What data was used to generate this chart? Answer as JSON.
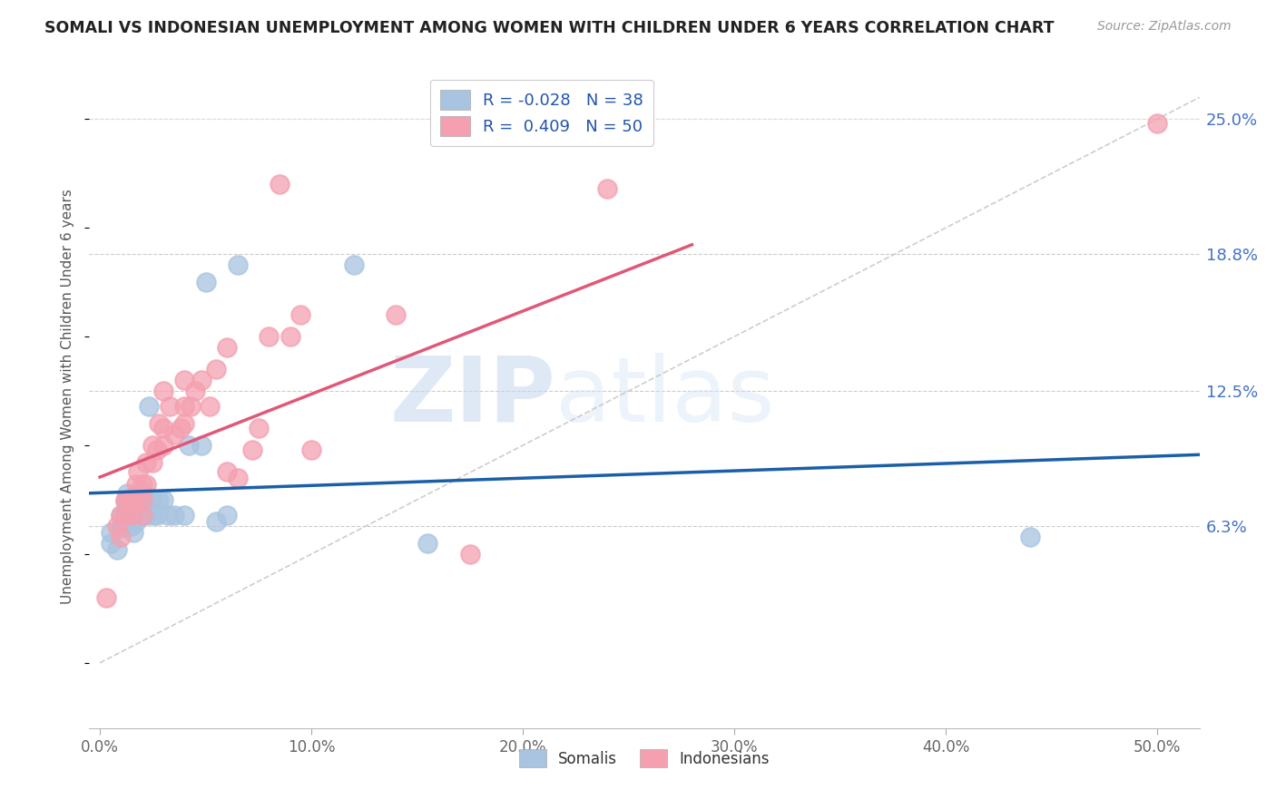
{
  "title": "SOMALI VS INDONESIAN UNEMPLOYMENT AMONG WOMEN WITH CHILDREN UNDER 6 YEARS CORRELATION CHART",
  "source": "Source: ZipAtlas.com",
  "ylabel": "Unemployment Among Women with Children Under 6 years",
  "xlabel_ticks": [
    "0.0%",
    "10.0%",
    "20.0%",
    "30.0%",
    "40.0%",
    "50.0%"
  ],
  "xlabel_vals": [
    0.0,
    0.1,
    0.2,
    0.3,
    0.4,
    0.5
  ],
  "ylabel_ticks": [
    "6.3%",
    "12.5%",
    "18.8%",
    "25.0%"
  ],
  "ylabel_vals": [
    0.063,
    0.125,
    0.188,
    0.25
  ],
  "ylim": [
    -0.03,
    0.275
  ],
  "xlim": [
    -0.005,
    0.52
  ],
  "somali_color": "#a8c4e0",
  "indonesian_color": "#f4a0b0",
  "somali_line_color": "#1a5fa8",
  "indonesian_line_color": "#e05878",
  "diagonal_color": "#c8c8c8",
  "R_somali": -0.028,
  "N_somali": 38,
  "R_indonesian": 0.409,
  "N_indonesian": 50,
  "legend_label_somali": "Somalis",
  "legend_label_indonesian": "Indonesians",
  "watermark_zip": "ZIP",
  "watermark_atlas": "atlas",
  "somali_x": [
    0.005,
    0.005,
    0.008,
    0.01,
    0.01,
    0.012,
    0.012,
    0.013,
    0.013,
    0.015,
    0.015,
    0.016,
    0.016,
    0.017,
    0.018,
    0.018,
    0.02,
    0.02,
    0.022,
    0.022,
    0.023,
    0.025,
    0.025,
    0.027,
    0.028,
    0.03,
    0.032,
    0.035,
    0.04,
    0.042,
    0.048,
    0.05,
    0.055,
    0.06,
    0.065,
    0.12,
    0.155,
    0.44
  ],
  "somali_y": [
    0.055,
    0.06,
    0.052,
    0.062,
    0.068,
    0.068,
    0.074,
    0.072,
    0.078,
    0.063,
    0.07,
    0.06,
    0.075,
    0.065,
    0.068,
    0.075,
    0.068,
    0.078,
    0.068,
    0.075,
    0.118,
    0.068,
    0.075,
    0.068,
    0.075,
    0.075,
    0.068,
    0.068,
    0.068,
    0.1,
    0.1,
    0.175,
    0.065,
    0.068,
    0.183,
    0.183,
    0.055,
    0.058
  ],
  "indonesian_x": [
    0.003,
    0.008,
    0.01,
    0.01,
    0.012,
    0.012,
    0.013,
    0.015,
    0.015,
    0.016,
    0.017,
    0.018,
    0.018,
    0.02,
    0.02,
    0.02,
    0.022,
    0.022,
    0.025,
    0.025,
    0.027,
    0.028,
    0.03,
    0.03,
    0.03,
    0.033,
    0.035,
    0.038,
    0.04,
    0.04,
    0.04,
    0.043,
    0.045,
    0.048,
    0.052,
    0.055,
    0.06,
    0.06,
    0.065,
    0.072,
    0.075,
    0.08,
    0.085,
    0.09,
    0.095,
    0.1,
    0.14,
    0.175,
    0.24,
    0.5
  ],
  "indonesian_y": [
    0.03,
    0.063,
    0.058,
    0.068,
    0.068,
    0.075,
    0.075,
    0.068,
    0.075,
    0.075,
    0.082,
    0.078,
    0.088,
    0.068,
    0.075,
    0.082,
    0.082,
    0.092,
    0.092,
    0.1,
    0.098,
    0.11,
    0.1,
    0.108,
    0.125,
    0.118,
    0.105,
    0.108,
    0.11,
    0.118,
    0.13,
    0.118,
    0.125,
    0.13,
    0.118,
    0.135,
    0.088,
    0.145,
    0.085,
    0.098,
    0.108,
    0.15,
    0.22,
    0.15,
    0.16,
    0.098,
    0.16,
    0.05,
    0.218,
    0.248
  ]
}
